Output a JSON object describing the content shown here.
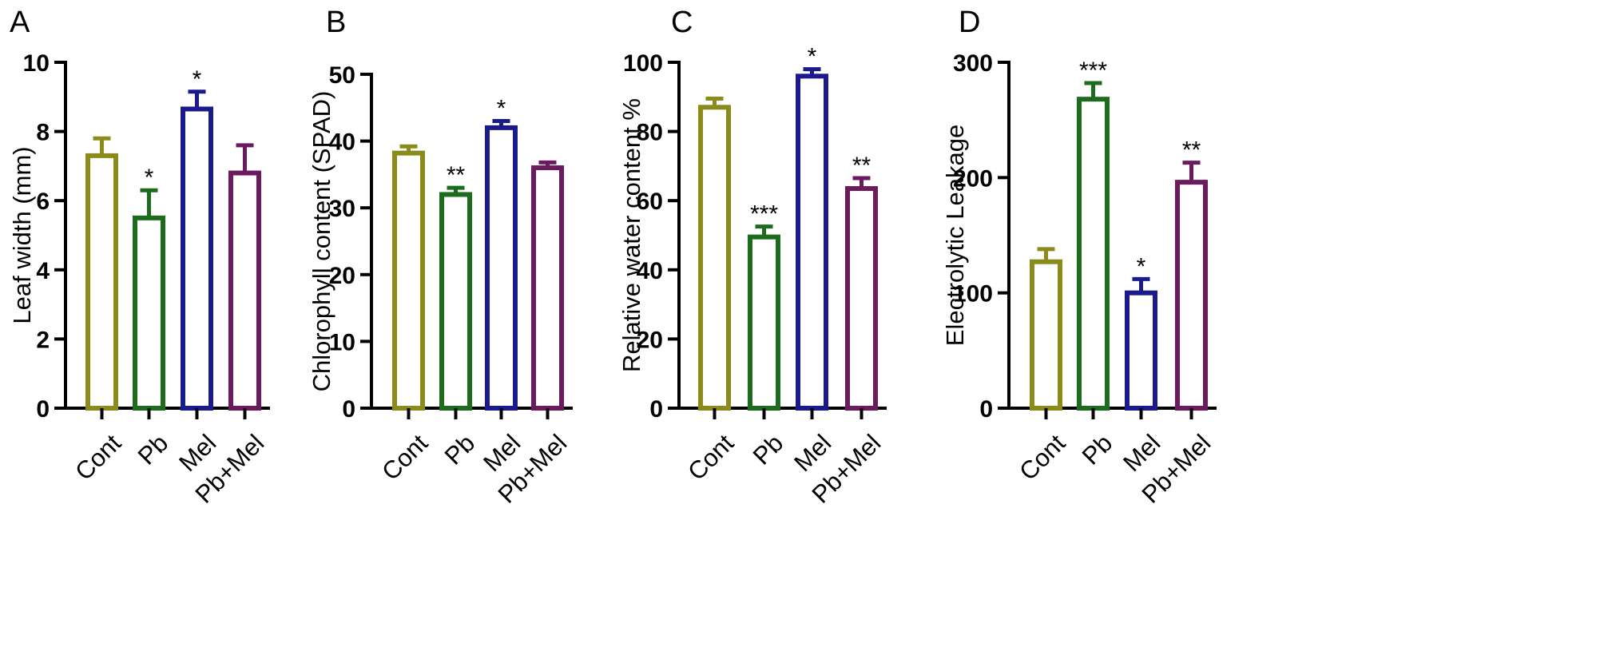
{
  "chart_data": [
    {
      "type": "bar",
      "panel": "A",
      "ylabel": "Leaf width (mm)",
      "categories": [
        "Cont",
        "Pb",
        "Mel",
        "Pb+Mel"
      ],
      "values": [
        7.3,
        5.5,
        8.65,
        6.8
      ],
      "errors": [
        0.5,
        0.8,
        0.5,
        0.8
      ],
      "significance": [
        "",
        "*",
        "*",
        ""
      ],
      "colors": [
        "#8b8b1c",
        "#1d6b1d",
        "#1a1a8c",
        "#6b1a5e"
      ],
      "ylim": [
        0,
        10
      ],
      "yticks": [
        0,
        2,
        4,
        6,
        8,
        10
      ],
      "ytick_labels": [
        "0",
        "2",
        "4",
        "6",
        "8",
        "10"
      ]
    },
    {
      "type": "bar",
      "panel": "B",
      "ylabel": "Chlorophyll content (SPAD)",
      "categories": [
        "Cont",
        "Pb",
        "Mel",
        "Pb+Mel"
      ],
      "values": [
        38.2,
        32.0,
        42.0,
        36.0
      ],
      "errors": [
        1.0,
        1.0,
        1.0,
        0.8
      ],
      "significance": [
        "",
        "**",
        "*",
        ""
      ],
      "colors": [
        "#8b8b1c",
        "#1d6b1d",
        "#1a1a8c",
        "#6b1a5e"
      ],
      "ylim": [
        0,
        50
      ],
      "yticks": [
        0,
        10,
        20,
        30,
        40,
        50
      ],
      "ytick_labels": [
        "0",
        "10",
        "20",
        "30",
        "40",
        "50"
      ]
    },
    {
      "type": "bar",
      "panel": "C",
      "ylabel": "Relative water content %",
      "categories": [
        "Cont",
        "Pb",
        "Mel",
        "Pb+Mel"
      ],
      "values": [
        87.0,
        49.5,
        96.0,
        63.5
      ],
      "errors": [
        2.5,
        3.0,
        2.0,
        3.0
      ],
      "significance": [
        "",
        "***",
        "*",
        "**"
      ],
      "colors": [
        "#8b8b1c",
        "#1d6b1d",
        "#1a1a8c",
        "#6b1a5e"
      ],
      "ylim": [
        0,
        100
      ],
      "yticks": [
        0,
        20,
        40,
        60,
        80,
        100
      ],
      "ytick_labels": [
        "0",
        "20",
        "40",
        "60",
        "80",
        "100"
      ]
    },
    {
      "type": "bar",
      "panel": "D",
      "ylabel": "Electrolytic Leakage",
      "categories": [
        "Cont",
        "Pb",
        "Mel",
        "Pb+Mel"
      ],
      "values": [
        127,
        268,
        100,
        196
      ],
      "errors": [
        11,
        14,
        12,
        17
      ],
      "significance": [
        "",
        "***",
        "*",
        "**"
      ],
      "colors": [
        "#8b8b1c",
        "#1d6b1d",
        "#1a1a8c",
        "#6b1a5e"
      ],
      "ylim": [
        0,
        300
      ],
      "yticks": [
        0,
        100,
        200,
        300
      ],
      "ytick_labels": [
        "0",
        "100",
        "200",
        "300"
      ]
    }
  ]
}
